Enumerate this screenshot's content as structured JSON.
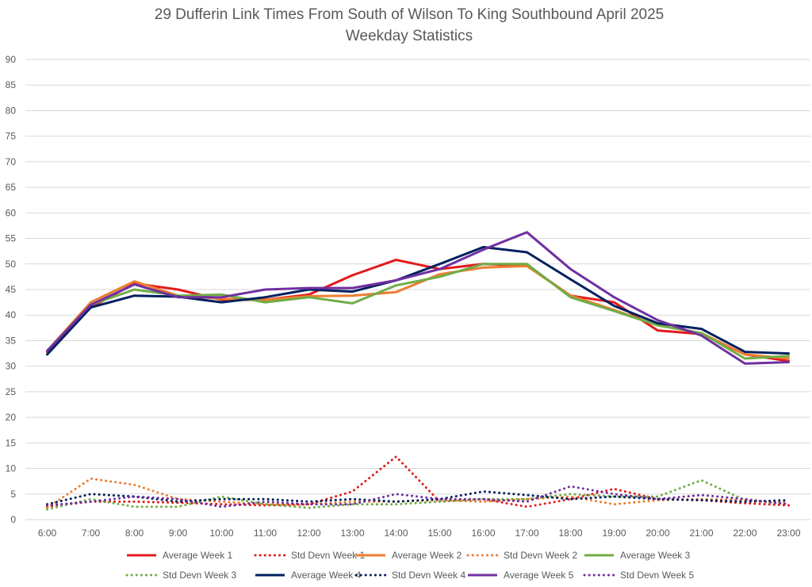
{
  "chart_data": {
    "type": "line",
    "title": "29 Dufferin Link Times From South of Wilson To King Southbound April 2025",
    "subtitle": "Weekday Statistics",
    "xlabel": "",
    "ylabel": "",
    "ylim": [
      0,
      90
    ],
    "ystep": 5,
    "grid": true,
    "legend": "bottom",
    "categories": [
      "6:00",
      "7:00",
      "8:00",
      "9:00",
      "10:00",
      "11:00",
      "12:00",
      "13:00",
      "14:00",
      "15:00",
      "16:00",
      "17:00",
      "18:00",
      "19:00",
      "20:00",
      "21:00",
      "22:00",
      "23:00"
    ],
    "series": [
      {
        "name": "Average Week 1",
        "style": "solid",
        "color": "#e31a1c",
        "values": [
          32.8,
          41.5,
          46.2,
          45.0,
          43.0,
          43.0,
          44.0,
          47.8,
          50.8,
          49.0,
          50.0,
          49.7,
          43.8,
          42.5,
          37.0,
          36.3,
          32.3,
          31.0
        ]
      },
      {
        "name": "Std Devn Week 1",
        "style": "dotted",
        "color": "#e31a1c",
        "values": [
          2.5,
          3.5,
          3.5,
          3.3,
          3.0,
          2.8,
          3.0,
          5.5,
          12.3,
          3.5,
          4.0,
          2.5,
          4.0,
          6.0,
          4.0,
          3.8,
          3.2,
          2.8
        ]
      },
      {
        "name": "Average Week 2",
        "style": "solid",
        "color": "#ed7d31",
        "values": [
          33.0,
          42.5,
          46.6,
          43.8,
          43.2,
          43.0,
          43.7,
          43.8,
          44.5,
          48.0,
          49.3,
          49.6,
          43.8,
          41.0,
          38.0,
          36.5,
          32.3,
          31.5
        ]
      },
      {
        "name": "Std Devn Week 2",
        "style": "dotted",
        "color": "#ed7d31",
        "values": [
          2.3,
          8.0,
          6.8,
          4.0,
          3.5,
          3.0,
          3.0,
          3.5,
          3.5,
          3.8,
          3.5,
          4.0,
          4.5,
          3.0,
          3.8,
          4.0,
          3.8,
          3.3
        ]
      },
      {
        "name": "Average Week 3",
        "style": "solid",
        "color": "#70ad47",
        "values": [
          33.0,
          42.0,
          45.0,
          43.8,
          44.0,
          42.5,
          43.5,
          42.3,
          45.8,
          47.5,
          50.0,
          50.0,
          43.5,
          40.8,
          38.0,
          36.5,
          31.5,
          32.0
        ]
      },
      {
        "name": "Std Devn Week 3",
        "style": "dotted",
        "color": "#70ad47",
        "values": [
          2.0,
          4.0,
          2.5,
          2.5,
          4.5,
          3.0,
          2.3,
          3.0,
          3.0,
          3.5,
          4.0,
          4.0,
          5.0,
          4.5,
          4.5,
          7.7,
          3.8,
          3.0
        ]
      },
      {
        "name": "Average Week 4",
        "style": "solid",
        "color": "#002060",
        "values": [
          32.3,
          41.5,
          43.8,
          43.6,
          42.5,
          43.5,
          45.0,
          44.6,
          46.8,
          50.0,
          53.3,
          52.3,
          47.0,
          41.8,
          38.4,
          37.3,
          32.8,
          32.5
        ]
      },
      {
        "name": "Std Devn Week 4",
        "style": "dotted",
        "color": "#002060",
        "values": [
          3.0,
          5.0,
          4.5,
          3.5,
          4.0,
          4.0,
          3.5,
          4.0,
          3.5,
          4.0,
          5.5,
          4.8,
          4.0,
          4.5,
          4.0,
          3.8,
          3.5,
          3.8
        ]
      },
      {
        "name": "Average Week 5",
        "style": "solid",
        "color": "#7030a0",
        "values": [
          33.0,
          42.0,
          46.0,
          43.5,
          43.5,
          45.0,
          45.3,
          45.3,
          46.8,
          49.0,
          52.8,
          56.2,
          49.0,
          43.5,
          39.0,
          36.0,
          30.5,
          30.8
        ]
      },
      {
        "name": "Std Devn Week 5",
        "style": "dotted",
        "color": "#7030a0",
        "values": [
          2.8,
          3.5,
          4.5,
          4.0,
          2.5,
          3.5,
          3.0,
          3.0,
          5.0,
          4.0,
          4.0,
          3.5,
          6.5,
          5.0,
          4.0,
          4.8,
          4.0,
          3.0
        ]
      }
    ]
  }
}
